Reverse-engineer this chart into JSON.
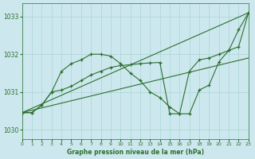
{
  "background_color": "#cce8ee",
  "plot_bg": "#cce8ee",
  "grid_color": "#aad4d4",
  "line_color": "#2d6e2d",
  "title": "Graphe pression niveau de la mer (hPa)",
  "xlim": [
    0,
    23
  ],
  "ylim": [
    1029.75,
    1033.35
  ],
  "xtick_vals": [
    0,
    1,
    2,
    3,
    4,
    5,
    6,
    7,
    8,
    9,
    10,
    11,
    12,
    13,
    14,
    15,
    16,
    17,
    18,
    19,
    20,
    21,
    22,
    23
  ],
  "xtick_labels": [
    "0",
    "1",
    "2",
    "3",
    "4",
    "5",
    "6",
    "7",
    "8",
    "9",
    "10",
    "11",
    "12",
    "13",
    "14",
    "15",
    "16",
    "17",
    "18",
    "19",
    "20",
    "21",
    "22",
    "23"
  ],
  "ytick_vals": [
    1030,
    1031,
    1032,
    1033
  ],
  "ytick_labels": [
    "1030",
    "1031",
    "1032",
    "1033"
  ],
  "series": [
    {
      "x": [
        0,
        1,
        2,
        3,
        4,
        5,
        6,
        7,
        8,
        9,
        10,
        11,
        12,
        13,
        14,
        15,
        16,
        17,
        18,
        19,
        20,
        21,
        22,
        23
      ],
      "y": [
        1030.45,
        1030.45,
        1030.65,
        1031.0,
        1031.55,
        1031.75,
        1031.85,
        1032.0,
        1032.0,
        1031.95,
        1031.75,
        1031.5,
        1031.3,
        1031.0,
        1030.85,
        1030.6,
        1030.42,
        1030.42,
        1031.05,
        1031.18,
        1031.8,
        1032.1,
        1032.65,
        1033.1
      ],
      "has_markers": true
    },
    {
      "x": [
        0,
        1,
        2,
        3,
        4,
        5,
        6,
        7,
        8,
        9,
        10,
        11,
        12,
        13,
        14,
        15,
        16,
        17,
        18,
        19,
        20,
        21,
        22,
        23
      ],
      "y": [
        1030.45,
        1030.45,
        1030.65,
        1031.0,
        1031.05,
        1031.15,
        1031.3,
        1031.45,
        1031.55,
        1031.65,
        1031.7,
        1031.72,
        1031.75,
        1031.77,
        1031.78,
        1030.42,
        1030.42,
        1031.55,
        1031.85,
        1031.9,
        1032.0,
        1032.1,
        1032.2,
        1033.1
      ],
      "has_markers": true
    },
    {
      "x": [
        0,
        23
      ],
      "y": [
        1030.45,
        1033.1
      ],
      "has_markers": false
    },
    {
      "x": [
        0,
        23
      ],
      "y": [
        1030.45,
        1031.9
      ],
      "has_markers": false
    }
  ]
}
